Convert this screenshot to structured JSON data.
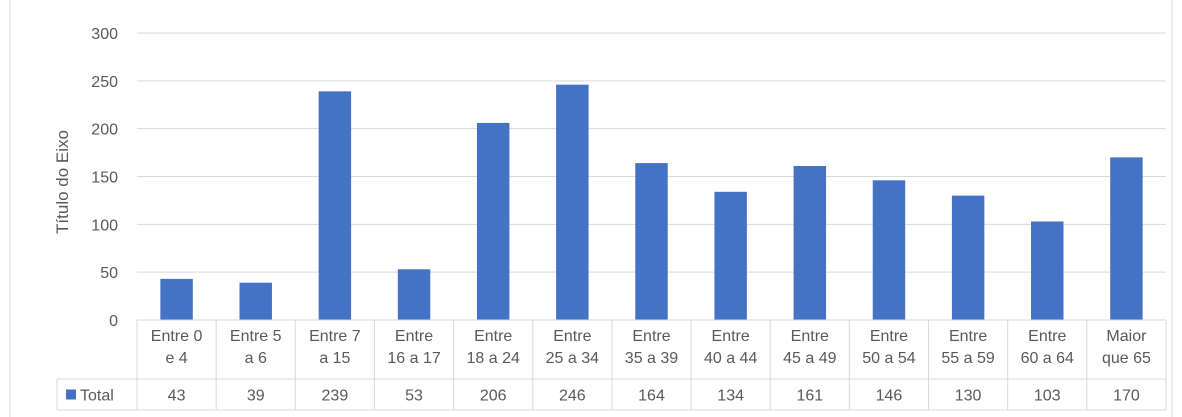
{
  "chart_data": {
    "type": "bar",
    "title": "",
    "ylabel": "Título do Eixo",
    "xlabel": "",
    "ylim": [
      0,
      300
    ],
    "yticks": [
      0,
      50,
      100,
      150,
      200,
      250,
      300
    ],
    "grid": true,
    "legend_position": "table-left",
    "categories": [
      [
        "Entre 0",
        "e 4"
      ],
      [
        "Entre 5",
        "a 6"
      ],
      [
        "Entre 7",
        "a 15"
      ],
      [
        "Entre",
        "16 a 17"
      ],
      [
        "Entre",
        "18 a 24"
      ],
      [
        "Entre",
        "25 a 34"
      ],
      [
        "Entre",
        "35 a 39"
      ],
      [
        "Entre",
        "40 a 44"
      ],
      [
        "Entre",
        "45 a 49"
      ],
      [
        "Entre",
        "50 a 54"
      ],
      [
        "Entre",
        "55 a 59"
      ],
      [
        "Entre",
        "60 a 64"
      ],
      [
        "Maior",
        "que 65"
      ]
    ],
    "series": [
      {
        "name": "Total",
        "values": [
          43,
          39,
          239,
          53,
          206,
          246,
          164,
          134,
          161,
          146,
          130,
          103,
          170
        ]
      }
    ],
    "colors": {
      "bar": "#4472C4",
      "grid": "#D9D9D9",
      "text": "#595959"
    }
  }
}
